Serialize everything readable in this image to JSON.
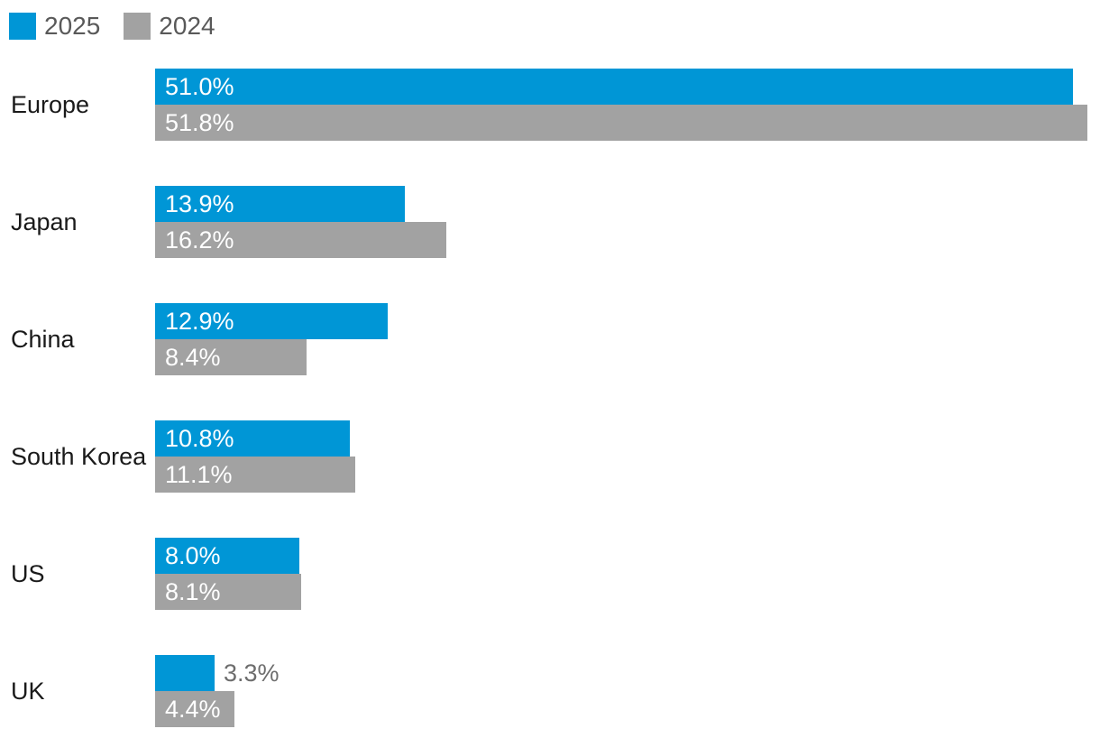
{
  "chart_data": {
    "type": "bar",
    "orientation": "horizontal",
    "title": "",
    "xlabel": "",
    "ylabel": "",
    "categories": [
      "Europe",
      "Japan",
      "China",
      "South Korea",
      "US",
      "UK"
    ],
    "series": [
      {
        "name": "2025",
        "color": "#0096d6",
        "values": [
          51.0,
          13.9,
          12.9,
          10.8,
          8.0,
          3.3
        ]
      },
      {
        "name": "2024",
        "color": "#a2a2a2",
        "values": [
          51.8,
          16.2,
          8.4,
          11.1,
          8.1,
          4.4
        ]
      }
    ],
    "data_labels": [
      {
        "category": "Europe",
        "labels": [
          "51.0%",
          "51.8%"
        ]
      },
      {
        "category": "Japan",
        "labels": [
          "13.9%",
          "16.2%"
        ]
      },
      {
        "category": "China",
        "labels": [
          "12.9%",
          "8.4%"
        ]
      },
      {
        "category": "South Korea",
        "labels": [
          "10.8%",
          "11.1%"
        ]
      },
      {
        "category": "US",
        "labels": [
          "8.0%",
          "8.1%"
        ]
      },
      {
        "category": "UK",
        "labels": [
          "3.3%",
          "4.4%"
        ]
      }
    ],
    "value_suffix": "%",
    "xlim": [
      0,
      51.8
    ],
    "grid": false,
    "legend_position": "top-left"
  },
  "colors": {
    "bar_2025": "#0096d6",
    "bar_2024": "#a2a2a2",
    "category_text": "#1a1a1a",
    "value_in_bar": "#ffffff",
    "value_outside": "#6d6d6d",
    "legend_text": "#595959"
  }
}
